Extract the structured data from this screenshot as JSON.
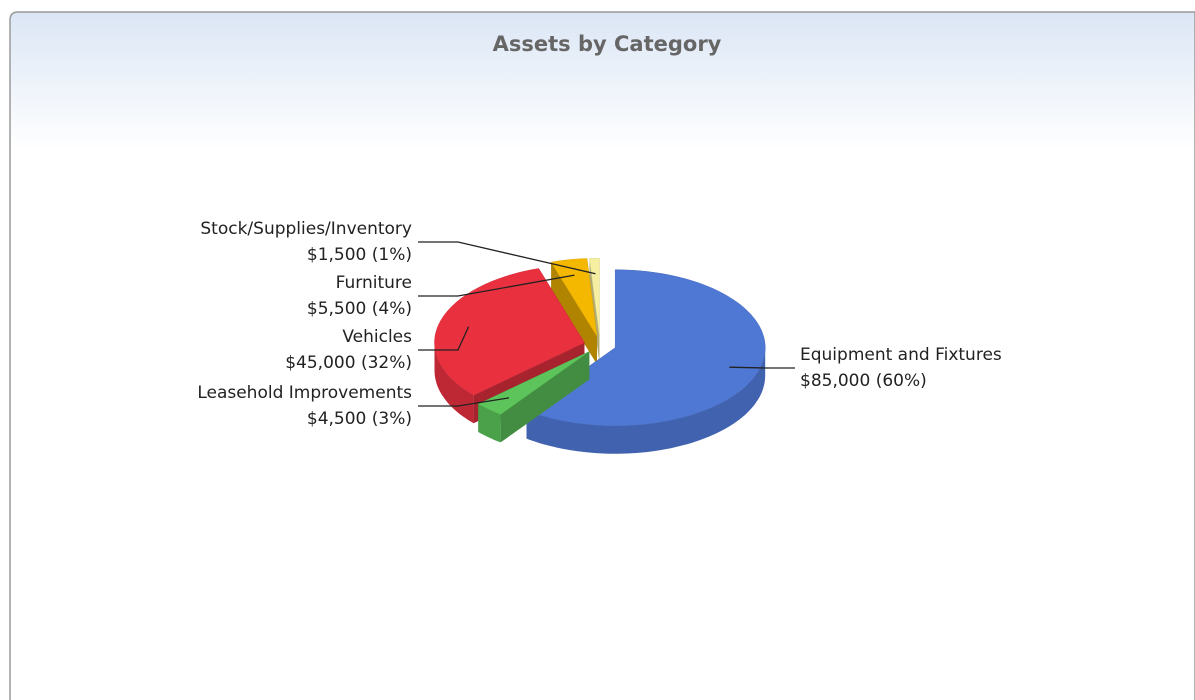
{
  "chart_data": {
    "type": "pie3d",
    "title": "Assets by Category",
    "categories": [
      "Equipment and Fixtures",
      "Leasehold Improvements",
      "Vehicles",
      "Furniture",
      "Stock/Supplies/Inventory"
    ],
    "values": [
      85000,
      4500,
      45000,
      5500,
      1500
    ],
    "value_labels": [
      "$85,000  (60%)",
      "$4,500  (3%)",
      "$45,000  (32%)",
      "$5,500  (4%)",
      "$1,500  (1%)"
    ],
    "colors": [
      "#4f78d4",
      "#5cc45a",
      "#e8303f",
      "#f5b800",
      "#f6eea0"
    ]
  }
}
